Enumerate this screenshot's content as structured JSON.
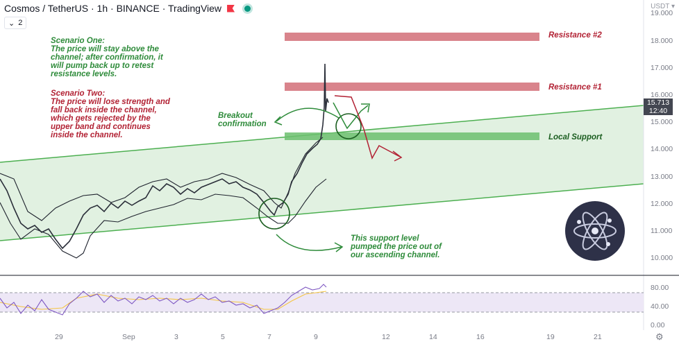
{
  "header": {
    "title": "Cosmos / TetherUS · 1h · BINANCE · TradingView",
    "currency": "USDT ▾",
    "interval_count": "2"
  },
  "price_badge": {
    "price": "15.713",
    "countdown": "12:40"
  },
  "annotations": {
    "scenario_one": [
      "Scenario One:",
      "The price will stay above the",
      "channel; after confirmation, it",
      "will pump back up to retest",
      "resistance levels."
    ],
    "scenario_two": [
      "Scenario Two:",
      "The price will lose strength and",
      "fall back inside the channel,",
      "which gets rejected by the",
      "upper band and continues",
      "inside the channel."
    ],
    "breakout": [
      "Breakout",
      "confirmation"
    ],
    "support_note": [
      "This support level",
      "pumped the price out of",
      "our ascending channel."
    ],
    "resistance_2": "Resistance #2",
    "resistance_1": "Resistance #1",
    "local_support": "Local Support"
  },
  "price_axis": [
    "19.000",
    "18.000",
    "17.000",
    "16.000",
    "15.000",
    "14.000",
    "13.000",
    "12.000",
    "11.000",
    "10.000"
  ],
  "rsi_axis": [
    "80.00",
    "40.00",
    "0.00"
  ],
  "time_axis": [
    "29",
    "Sep",
    "3",
    "5",
    "7",
    "9",
    "12",
    "14",
    "16",
    "19",
    "21"
  ],
  "colors": {
    "resistance": "#d9848c",
    "support": "#6cc06f",
    "channel_fill": "#dcefdc",
    "channel_line": "#4caf50",
    "candle": "#2a2e39",
    "rsi": "#7e57c2",
    "rsi_ma": "#f5c542"
  }
}
